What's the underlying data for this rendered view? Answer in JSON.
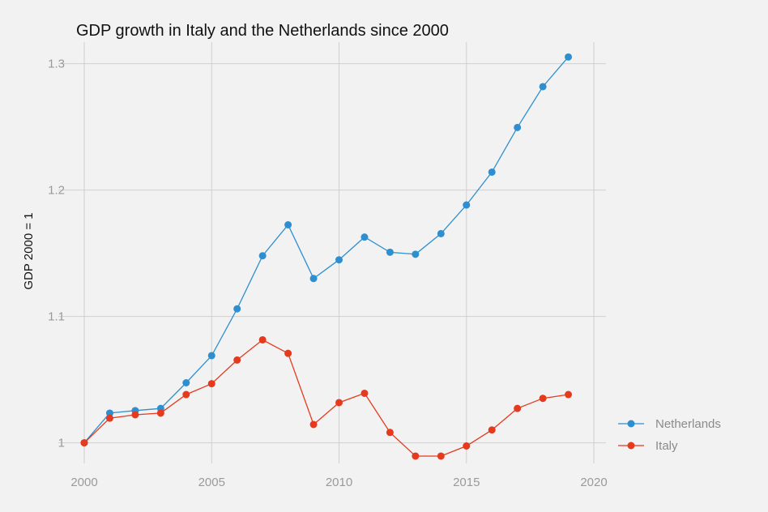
{
  "chart_data": {
    "type": "line",
    "title": "GDP growth in Italy and the Netherlands since 2000",
    "xlabel": "",
    "ylabel": "GDP 2000 = 1",
    "xlim": [
      2000,
      2020
    ],
    "ylim": [
      0.985,
      1.31
    ],
    "x_ticks": [
      2000,
      2005,
      2010,
      2015,
      2020
    ],
    "y_ticks": [
      1.0,
      1.1,
      1.2,
      1.3
    ],
    "x_tick_labels": [
      "2000",
      "2005",
      "2010",
      "2015",
      "2020"
    ],
    "y_tick_labels": [
      "1",
      "1.1",
      "1.2",
      "1.3"
    ],
    "grid": true,
    "legend_position": "right",
    "x": [
      2000,
      2001,
      2002,
      2003,
      2004,
      2005,
      2006,
      2007,
      2008,
      2009,
      2010,
      2011,
      2012,
      2013,
      2014,
      2015,
      2016,
      2017,
      2018,
      2019
    ],
    "series": [
      {
        "name": "Netherlands",
        "color": "#2e8fd0",
        "values": [
          1.0,
          1.0235,
          1.0255,
          1.0272,
          1.0475,
          1.069,
          1.106,
          1.148,
          1.1725,
          1.13,
          1.1448,
          1.1628,
          1.1508,
          1.1492,
          1.1655,
          1.1882,
          1.2142,
          1.2495,
          1.2818,
          1.3053
        ]
      },
      {
        "name": "Italy",
        "color": "#e53a1e",
        "values": [
          1.0,
          1.0195,
          1.0222,
          1.0235,
          1.0382,
          1.0468,
          1.0655,
          1.0815,
          1.0708,
          1.0145,
          1.0318,
          1.0392,
          1.0082,
          0.9895,
          0.9895,
          0.9975,
          1.0102,
          1.0272,
          1.0352,
          1.0382
        ]
      }
    ]
  }
}
